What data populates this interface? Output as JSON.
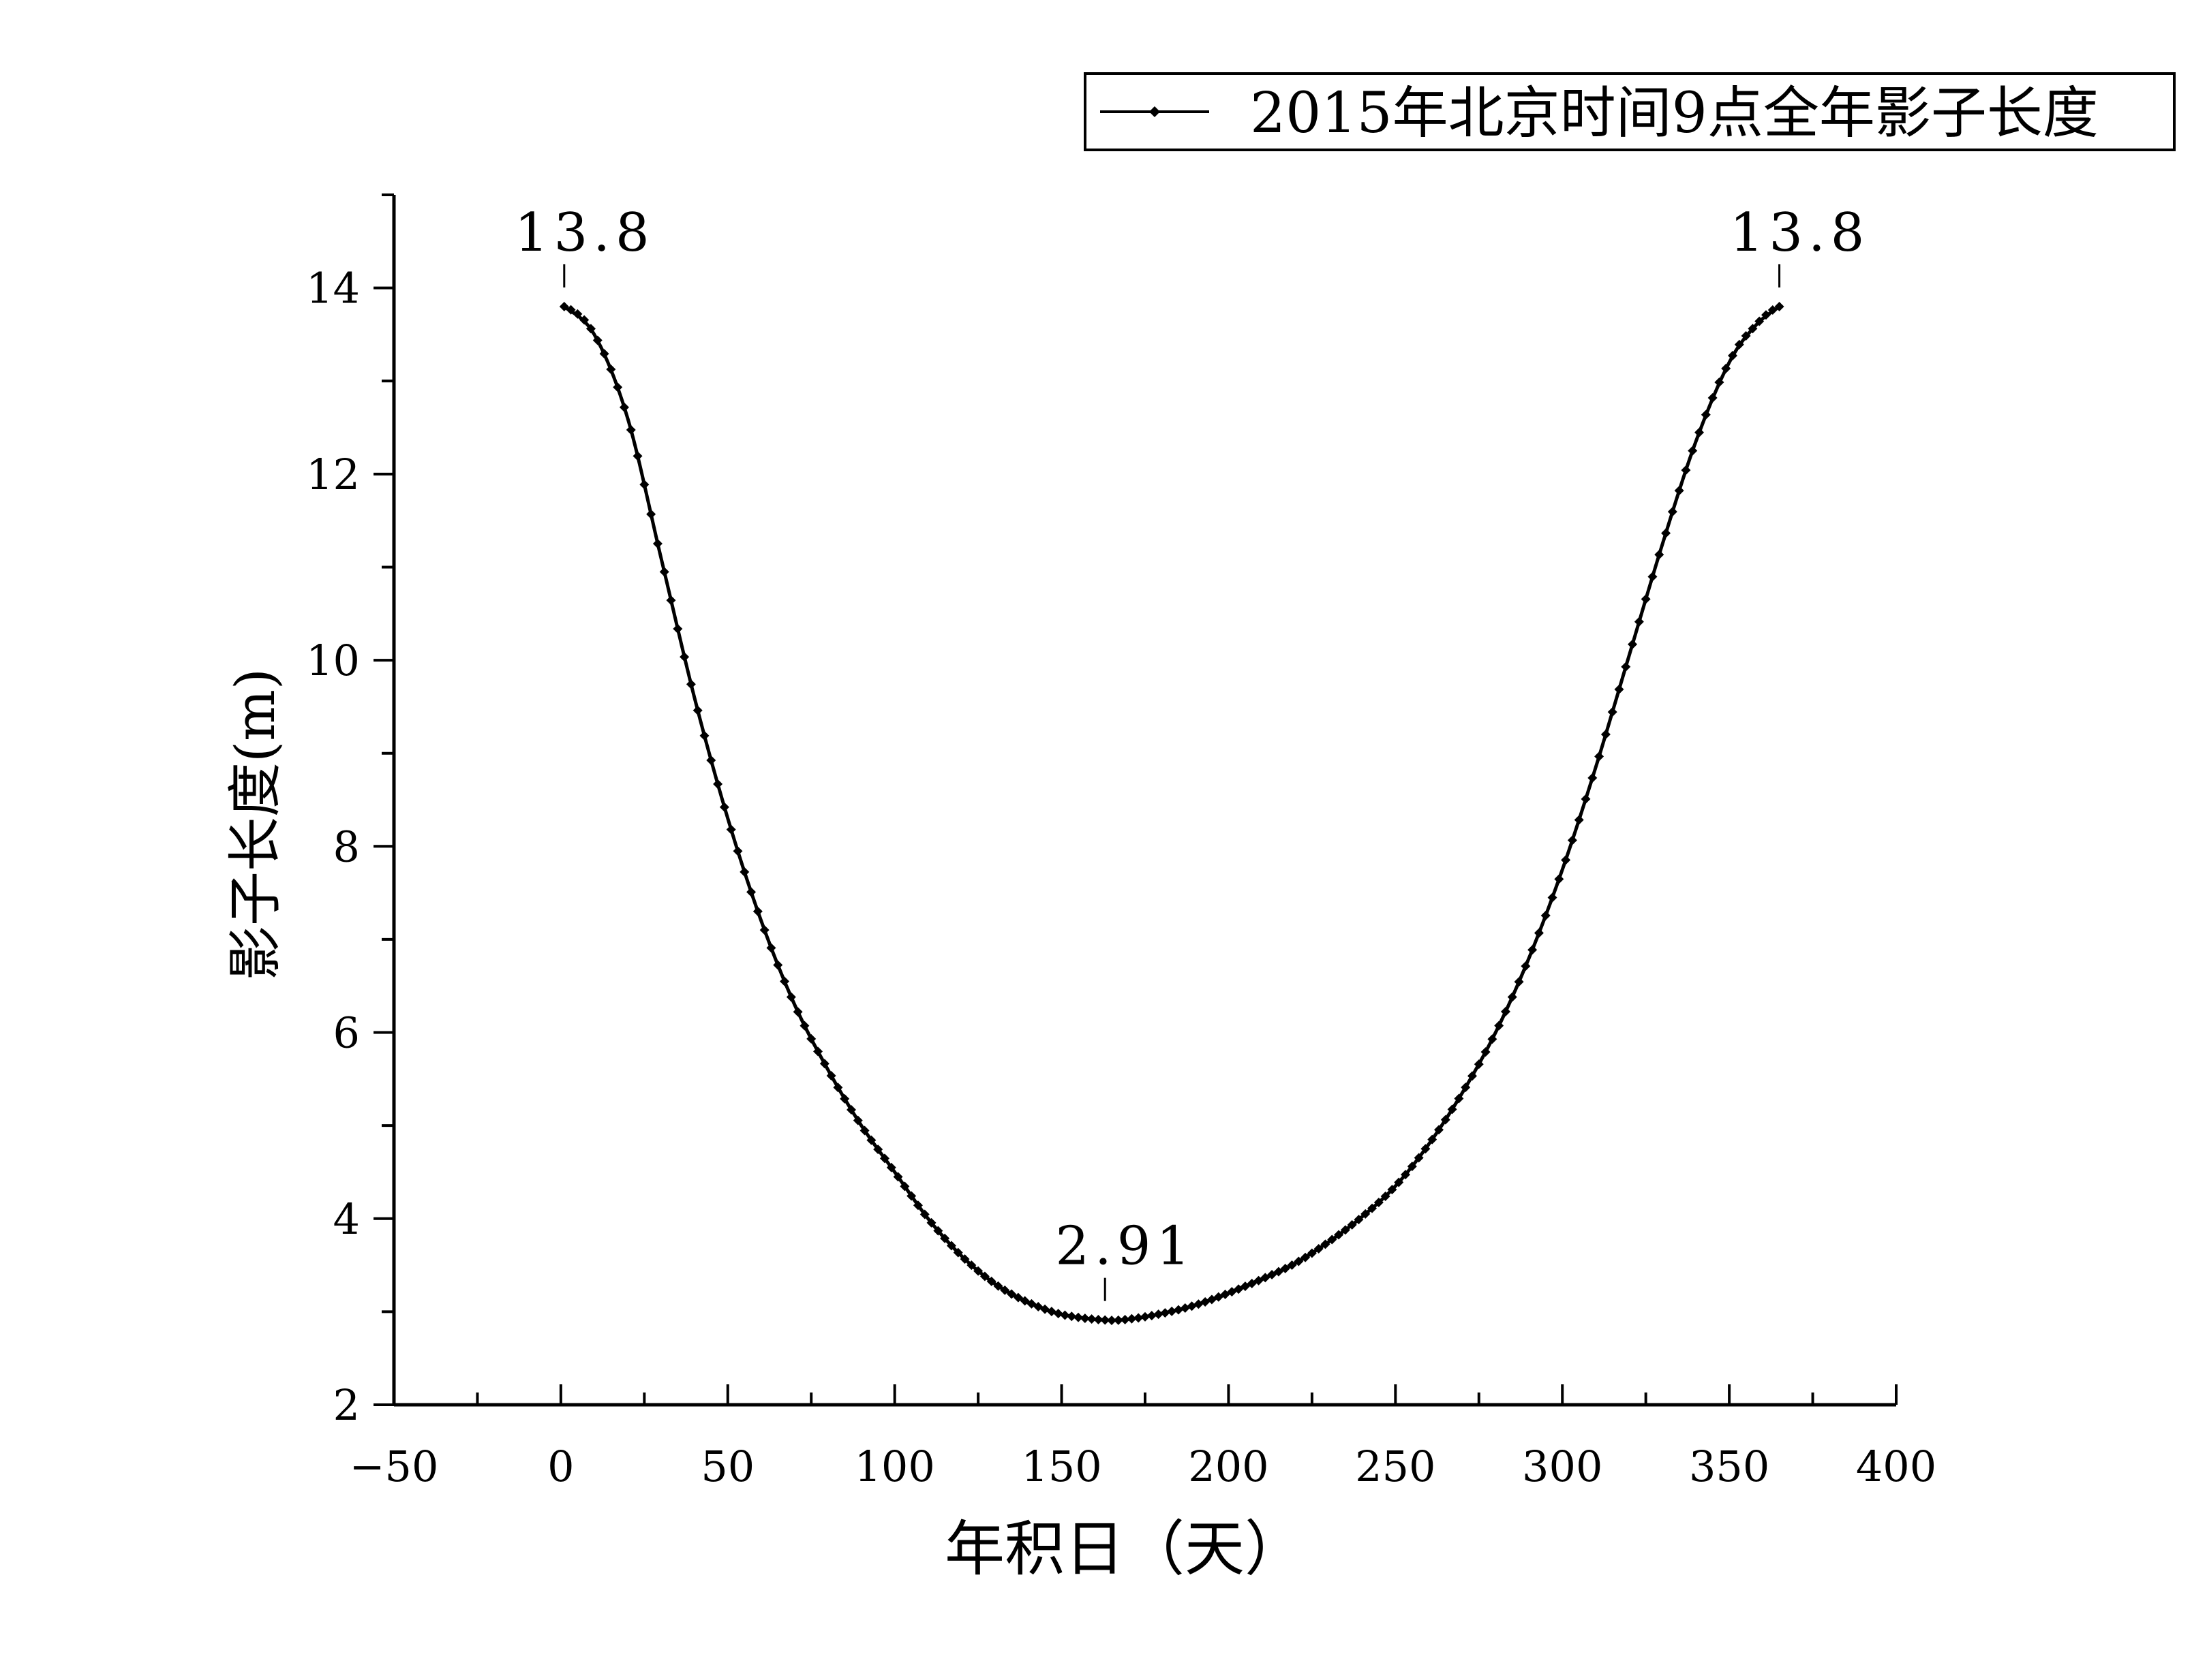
{
  "chart_data": {
    "type": "line",
    "legend": {
      "label": "2015年北京时间9点全年影子长度",
      "position": "top-right"
    },
    "xlabel": "年积日（天）",
    "ylabel": "影子长度(m)",
    "xlim": [
      -50,
      400
    ],
    "ylim": [
      2,
      15
    ],
    "x_ticks": [
      "−50",
      "0",
      "50",
      "100",
      "150",
      "200",
      "250",
      "300",
      "350",
      "400"
    ],
    "y_ticks": [
      "2",
      "4",
      "6",
      "8",
      "10",
      "12",
      "14"
    ],
    "grid": false,
    "series": [
      {
        "name": "2015年北京时间9点全年影子长度",
        "color": "#000000",
        "marker": "diamond",
        "x": [
          1,
          10,
          20,
          30,
          40,
          50,
          60,
          70,
          80,
          90,
          100,
          110,
          120,
          130,
          140,
          150,
          163,
          170,
          180,
          190,
          200,
          210,
          220,
          230,
          240,
          250,
          260,
          270,
          280,
          290,
          300,
          310,
          320,
          330,
          340,
          350,
          358,
          365
        ],
        "y": [
          13.8,
          13.5,
          12.6,
          11.1,
          9.6,
          8.3,
          7.2,
          6.3,
          5.6,
          5.0,
          4.5,
          4.0,
          3.6,
          3.3,
          3.1,
          2.97,
          2.91,
          2.92,
          2.98,
          3.07,
          3.2,
          3.35,
          3.52,
          3.75,
          4.02,
          4.35,
          4.8,
          5.35,
          6.0,
          6.8,
          7.75,
          8.85,
          10.05,
          11.25,
          12.35,
          13.2,
          13.6,
          13.8
        ]
      }
    ],
    "annotations": [
      {
        "text": "13.8",
        "x": 1,
        "y": 13.8
      },
      {
        "text": "2.91",
        "x": 163,
        "y": 2.91
      },
      {
        "text": "13.8",
        "x": 365,
        "y": 13.8
      }
    ]
  }
}
